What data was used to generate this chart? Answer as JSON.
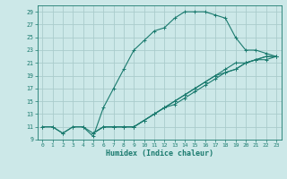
{
  "xlabel": "Humidex (Indice chaleur)",
  "bg_color": "#cce8e8",
  "grid_color": "#aacccc",
  "line_color": "#1a7a6e",
  "xlim": [
    -0.5,
    23.5
  ],
  "ylim": [
    9,
    30
  ],
  "xticks": [
    0,
    1,
    2,
    3,
    4,
    5,
    6,
    7,
    8,
    9,
    10,
    11,
    12,
    13,
    14,
    15,
    16,
    17,
    18,
    19,
    20,
    21,
    22,
    23
  ],
  "yticks": [
    9,
    11,
    13,
    15,
    17,
    19,
    21,
    23,
    25,
    27,
    29
  ],
  "curves": [
    {
      "x": [
        0,
        1,
        2,
        3,
        4,
        5,
        6,
        7,
        8,
        9,
        10,
        11,
        12,
        13,
        14,
        15,
        16,
        17,
        18,
        19,
        20,
        21,
        22,
        23
      ],
      "y": [
        11,
        11,
        10,
        11,
        11,
        9.5,
        14,
        17,
        20,
        23,
        24.5,
        26,
        26.5,
        28,
        29,
        29,
        29,
        28.5,
        28,
        25,
        23,
        23,
        22.5,
        22
      ]
    },
    {
      "x": [
        0,
        1,
        2,
        3,
        4,
        5,
        6,
        7,
        8,
        9,
        10,
        11,
        12,
        13,
        14,
        15,
        16,
        17,
        18,
        19,
        20,
        21,
        22,
        23
      ],
      "y": [
        11,
        11,
        10,
        11,
        11,
        10,
        11,
        11,
        11,
        11,
        12,
        13,
        14,
        15,
        16,
        17,
        18,
        19,
        20,
        21,
        21,
        21.5,
        21.5,
        22
      ]
    },
    {
      "x": [
        5,
        6,
        7,
        8,
        9,
        10,
        11,
        12,
        13,
        14,
        15,
        16,
        17,
        18,
        19,
        20,
        21,
        22,
        23
      ],
      "y": [
        10,
        11,
        11,
        11,
        11,
        12,
        13,
        14,
        15,
        16,
        17,
        18,
        19,
        19.5,
        20,
        21,
        21.5,
        22,
        22
      ]
    },
    {
      "x": [
        5,
        6,
        7,
        8,
        9,
        10,
        11,
        12,
        13,
        14,
        15,
        16,
        17,
        18,
        19,
        20,
        21,
        22,
        23
      ],
      "y": [
        10,
        11,
        11,
        11,
        11,
        12,
        13,
        14,
        14.5,
        15.5,
        16.5,
        17.5,
        18.5,
        19.5,
        20,
        21,
        21.5,
        22,
        22
      ]
    }
  ]
}
